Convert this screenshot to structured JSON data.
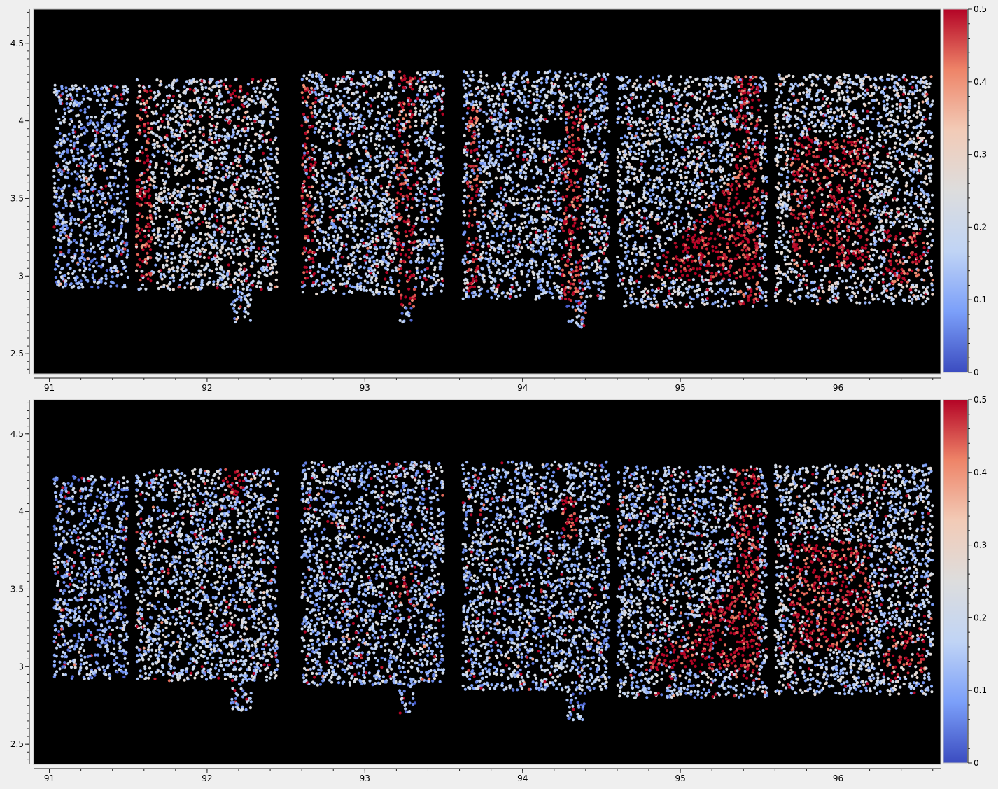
{
  "chart_data": [
    {
      "type": "scatter",
      "title": "",
      "xlabel": "",
      "ylabel": "",
      "xlim": [
        90.9,
        96.65
      ],
      "ylim": [
        2.37,
        4.72
      ],
      "xticks": [
        "91",
        "92",
        "93",
        "94",
        "95",
        "96"
      ],
      "yticks": [
        "2.5",
        "3",
        "3.5",
        "4",
        "4.5"
      ],
      "background": "#000000",
      "grid": false,
      "colorbar": {
        "min": 0,
        "max": 0.5,
        "ticks": [
          "0",
          "0.1",
          "0.2",
          "0.3",
          "0.4",
          "0.5"
        ],
        "colormap": "coolwarm",
        "stops": [
          "#3b4cc0",
          "#7b9ff9",
          "#c0d4f5",
          "#dddddd",
          "#f2cbb7",
          "#ee8468",
          "#b40426"
        ]
      },
      "clusters_note_color_scale": "coolwarm",
      "regions": [
        {
          "x": [
            91.03,
            91.5
          ],
          "y": [
            2.92,
            4.23
          ],
          "level": 0.14
        },
        {
          "x": [
            91.55,
            92.45
          ],
          "y": [
            2.91,
            4.27
          ],
          "level": 0.2
        },
        {
          "x": [
            92.15,
            92.28
          ],
          "y": [
            2.7,
            2.92
          ],
          "level": 0.15
        },
        {
          "x": [
            92.6,
            93.5
          ],
          "y": [
            2.88,
            4.32
          ],
          "level": 0.17
        },
        {
          "x": [
            93.22,
            93.32
          ],
          "y": [
            2.7,
            2.88
          ],
          "level": 0.12
        },
        {
          "x": [
            93.62,
            94.55
          ],
          "y": [
            2.85,
            4.32
          ],
          "level": 0.17
        },
        {
          "x": [
            94.28,
            94.4
          ],
          "y": [
            2.65,
            2.85
          ],
          "level": 0.12
        },
        {
          "x": [
            94.6,
            95.55
          ],
          "y": [
            2.8,
            4.29
          ],
          "level": 0.18
        },
        {
          "x": [
            95.6,
            96.6
          ],
          "y": [
            2.82,
            4.3
          ],
          "level": 0.2
        }
      ],
      "hotspots": [
        {
          "x": [
            91.55,
            91.65
          ],
          "y": [
            2.95,
            4.2
          ]
        },
        {
          "x": [
            92.1,
            92.22
          ],
          "y": [
            4.1,
            4.42
          ]
        },
        {
          "x": [
            92.6,
            92.68
          ],
          "y": [
            2.95,
            4.25
          ]
        },
        {
          "x": [
            93.2,
            93.32
          ],
          "y": [
            2.8,
            4.35
          ]
        },
        {
          "x": [
            93.65,
            93.72
          ],
          "y": [
            2.9,
            4.1
          ]
        },
        {
          "x": [
            94.25,
            94.38
          ],
          "y": [
            2.82,
            4.1
          ]
        },
        {
          "x": [
            95.35,
            95.5
          ],
          "y": [
            2.7,
            4.3
          ]
        },
        {
          "x": [
            95.7,
            96.2
          ],
          "y": [
            3.05,
            3.9
          ]
        },
        {
          "x": [
            96.3,
            96.55
          ],
          "y": [
            2.95,
            3.3
          ]
        }
      ],
      "triangles": [
        {
          "pts": [
            [
              94.75,
              2.98
            ],
            [
              95.5,
              2.98
            ],
            [
              95.5,
              3.82
            ]
          ]
        }
      ],
      "holes": [
        {
          "x": 94.2,
          "y": 3.94,
          "r": 0.07
        },
        {
          "x": 93.5,
          "y": 3.6,
          "r": 0.03
        },
        {
          "x": 92.75,
          "y": 3.1,
          "r": 0.04
        }
      ]
    },
    {
      "type": "scatter",
      "title": "",
      "xlabel": "",
      "ylabel": "",
      "xlim": [
        90.9,
        96.65
      ],
      "ylim": [
        2.37,
        4.72
      ],
      "xticks": [
        "91",
        "92",
        "93",
        "94",
        "95",
        "96"
      ],
      "yticks": [
        "2.5",
        "3",
        "3.5",
        "4",
        "4.5"
      ],
      "background": "#000000",
      "grid": false,
      "colorbar": {
        "min": 0,
        "max": 0.5,
        "ticks": [
          "0",
          "0.1",
          "0.2",
          "0.3",
          "0.4",
          "0.5"
        ],
        "colormap": "coolwarm",
        "stops": [
          "#3b4cc0",
          "#7b9ff9",
          "#c0d4f5",
          "#dddddd",
          "#f2cbb7",
          "#ee8468",
          "#b40426"
        ]
      },
      "regions": [
        {
          "x": [
            91.03,
            91.5
          ],
          "y": [
            2.92,
            4.23
          ],
          "level": 0.13
        },
        {
          "x": [
            91.55,
            92.45
          ],
          "y": [
            2.91,
            4.27
          ],
          "level": 0.17
        },
        {
          "x": [
            92.15,
            92.28
          ],
          "y": [
            2.7,
            2.92
          ],
          "level": 0.14
        },
        {
          "x": [
            92.6,
            93.5
          ],
          "y": [
            2.88,
            4.32
          ],
          "level": 0.15
        },
        {
          "x": [
            93.22,
            93.32
          ],
          "y": [
            2.7,
            2.88
          ],
          "level": 0.12
        },
        {
          "x": [
            93.62,
            94.55
          ],
          "y": [
            2.85,
            4.32
          ],
          "level": 0.15
        },
        {
          "x": [
            94.28,
            94.4
          ],
          "y": [
            2.65,
            2.85
          ],
          "level": 0.12
        },
        {
          "x": [
            94.6,
            95.55
          ],
          "y": [
            2.8,
            4.29
          ],
          "level": 0.16
        },
        {
          "x": [
            95.6,
            96.6
          ],
          "y": [
            2.82,
            4.3
          ],
          "level": 0.18
        }
      ],
      "hotspots": [
        {
          "x": [
            92.1,
            92.22
          ],
          "y": [
            4.1,
            4.42
          ]
        },
        {
          "x": [
            93.2,
            93.3
          ],
          "y": [
            3.4,
            3.6
          ]
        },
        {
          "x": [
            94.25,
            94.35
          ],
          "y": [
            3.8,
            4.1
          ]
        },
        {
          "x": [
            95.35,
            95.5
          ],
          "y": [
            2.9,
            4.3
          ]
        },
        {
          "x": [
            95.7,
            96.2
          ],
          "y": [
            3.1,
            3.8
          ]
        },
        {
          "x": [
            96.3,
            96.55
          ],
          "y": [
            2.95,
            3.25
          ]
        }
      ],
      "triangles": [
        {
          "pts": [
            [
              94.75,
              2.98
            ],
            [
              95.5,
              2.98
            ],
            [
              95.5,
              3.7
            ]
          ]
        }
      ],
      "holes": [
        {
          "x": 94.2,
          "y": 3.94,
          "r": 0.07
        },
        {
          "x": 93.5,
          "y": 3.6,
          "r": 0.03
        },
        {
          "x": 92.75,
          "y": 3.1,
          "r": 0.04
        }
      ]
    }
  ]
}
